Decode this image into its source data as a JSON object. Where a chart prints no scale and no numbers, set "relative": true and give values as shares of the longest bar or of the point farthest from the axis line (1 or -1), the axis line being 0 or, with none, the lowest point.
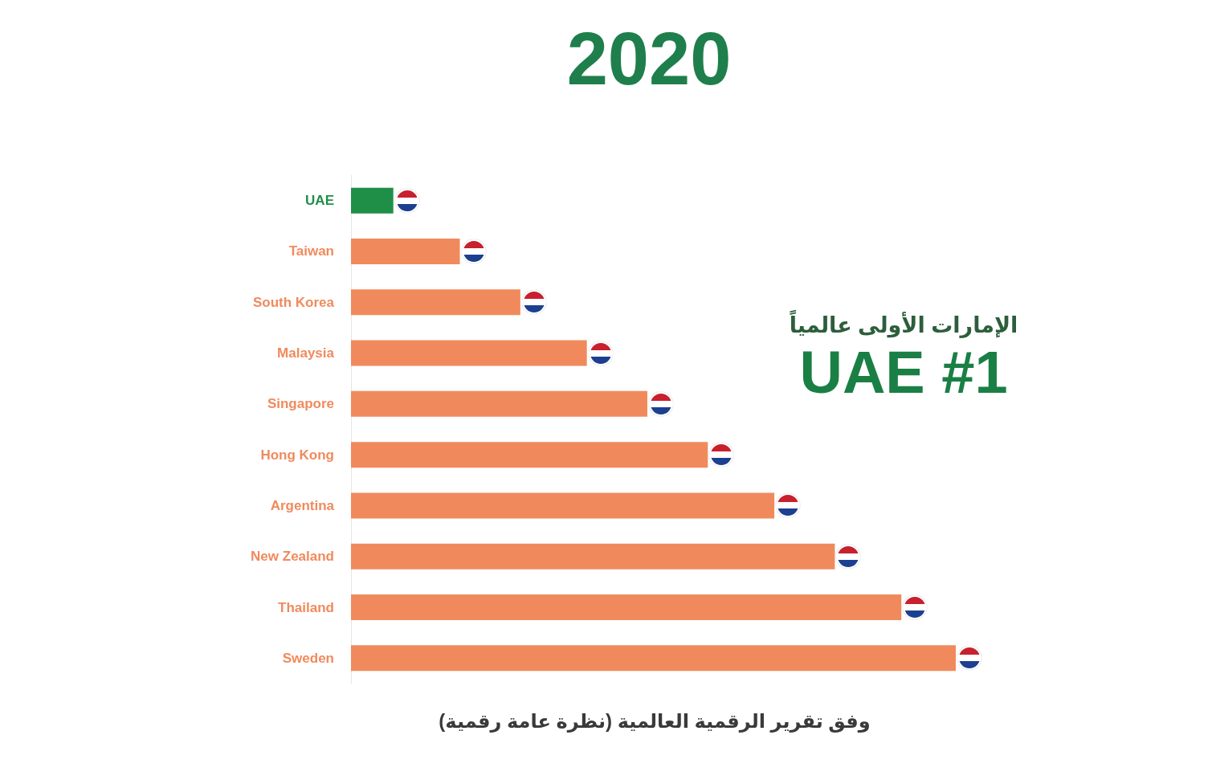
{
  "chart_data": {
    "type": "bar",
    "orientation": "horizontal",
    "relative": true,
    "title": "2020",
    "categories": [
      "UAE",
      "Taiwan",
      "South Korea",
      "Malaysia",
      "Singapore",
      "Hong Kong",
      "Argentina",
      "New Zealand",
      "Thailand",
      "Sweden"
    ],
    "values": [
      0.07,
      0.18,
      0.28,
      0.39,
      0.49,
      0.59,
      0.7,
      0.8,
      0.91,
      1
    ],
    "colors": [
      "#1f8f48",
      "#f08a5d",
      "#f08a5d",
      "#f08a5d",
      "#f08a5d",
      "#f08a5d",
      "#f08a5d",
      "#f08a5d",
      "#f08a5d",
      "#f08a5d"
    ],
    "annotations": [
      "الإمارات الأولى عالمياً",
      "UAE #1",
      "وفق تقرير الرقمية العالمية (نظرة عامة رقمية)"
    ]
  }
}
